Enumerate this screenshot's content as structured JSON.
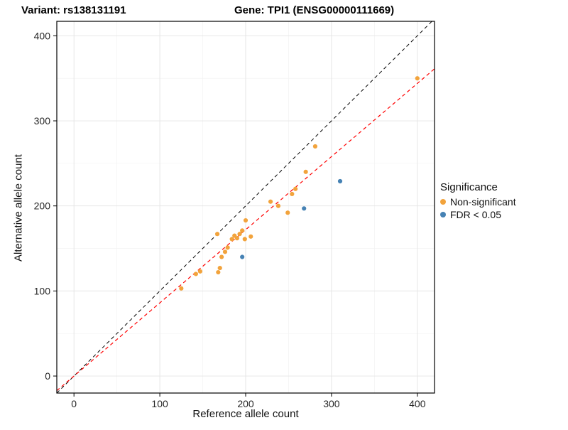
{
  "header": {
    "title_variant": "Variant: rs138131191",
    "title_gene": "Gene: TPI1 (ENSG00000111669)"
  },
  "axes": {
    "xlabel": "Reference allele count",
    "ylabel": "Alternative allele count"
  },
  "legend": {
    "title": "Significance",
    "items": [
      {
        "label": "Non-significant",
        "color": "#F2A33C"
      },
      {
        "label": "FDR < 0.05",
        "color": "#4682B4"
      }
    ]
  },
  "chart_data": {
    "type": "scatter",
    "title": "Variant: rs138131191 / Gene: TPI1 (ENSG00000111669)",
    "xlabel": "Reference allele count",
    "ylabel": "Alternative allele count",
    "xlim": [
      -20,
      420
    ],
    "ylim": [
      -20,
      417
    ],
    "xticks": [
      0,
      100,
      200,
      300,
      400
    ],
    "yticks": [
      0,
      100,
      200,
      300,
      400
    ],
    "minor_ticks": [
      50,
      150,
      250,
      350
    ],
    "grid": true,
    "legend_position": "right",
    "colors": {
      "major_grid": "#e4e4e4",
      "minor_grid": "#f1f1f1",
      "panel_border": "#000000",
      "tick_text": "#262626"
    },
    "series": [
      {
        "name": "Non-significant",
        "color": "#F2A33C",
        "points": [
          [
            125,
            103
          ],
          [
            142,
            120
          ],
          [
            147,
            123
          ],
          [
            167,
            167
          ],
          [
            168,
            122
          ],
          [
            170,
            127
          ],
          [
            172,
            140
          ],
          [
            176,
            146
          ],
          [
            179,
            151
          ],
          [
            184,
            161
          ],
          [
            187,
            165
          ],
          [
            190,
            162
          ],
          [
            193,
            167
          ],
          [
            196,
            171
          ],
          [
            199,
            161
          ],
          [
            200,
            183
          ],
          [
            206,
            164
          ],
          [
            229,
            205
          ],
          [
            238,
            200
          ],
          [
            249,
            192
          ],
          [
            254,
            214
          ],
          [
            258,
            220
          ],
          [
            270,
            240
          ],
          [
            281,
            270
          ],
          [
            400,
            350
          ]
        ]
      },
      {
        "name": "FDR < 0.05",
        "color": "#4682B4",
        "points": [
          [
            196,
            140
          ],
          [
            268,
            197
          ],
          [
            310,
            229
          ]
        ]
      }
    ],
    "lines": [
      {
        "name": "identity",
        "slope": 1,
        "intercept": 0,
        "color": "#000000",
        "dash": "5,4",
        "width": 1
      },
      {
        "name": "fit",
        "slope": 0.86,
        "intercept": 0,
        "color": "#FF0000",
        "dash": "5,4",
        "width": 1.2
      }
    ]
  }
}
